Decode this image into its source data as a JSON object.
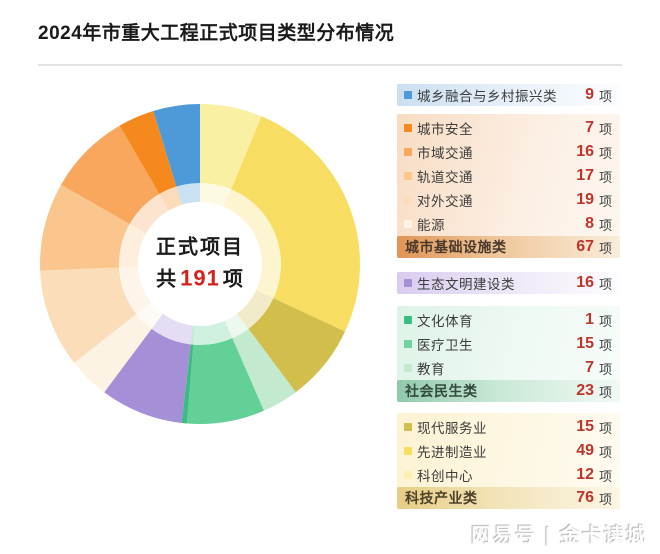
{
  "title": "2024年市重大工程正式项目类型分布情况",
  "center": {
    "line1": "正式项目",
    "prefix": "共",
    "total": "191",
    "suffix": "项"
  },
  "watermark": {
    "text": "网易号 | 金卡读城"
  },
  "colors": {
    "value_red": "#BE352C",
    "total_red": "#D2231E",
    "title_black": "#1A1A1A",
    "divider_gray": "#E3E3E3"
  },
  "chart_data": {
    "type": "pie",
    "title": "2024年市重大工程正式项目类型分布情况",
    "total": 191,
    "total_label": "正式项目 共191项",
    "unit": "项",
    "start_angle_deg": 0,
    "direction": "clockwise",
    "inner_ring_opacity": 0.3,
    "segments": [
      {
        "name": "科创中心",
        "value": 12,
        "color": "#FAF0A4"
      },
      {
        "name": "先进制造业",
        "value": 49,
        "color": "#F7DE62"
      },
      {
        "name": "现代服务业",
        "value": 15,
        "color": "#D2BE4B"
      },
      {
        "name": "教育",
        "value": 7,
        "color": "#C3E9CE"
      },
      {
        "name": "医疗卫生",
        "value": 15,
        "color": "#63D097"
      },
      {
        "name": "文化体育",
        "value": 1,
        "color": "#3BBC82"
      },
      {
        "name": "生态文明建设类",
        "value": 16,
        "color": "#A58FD6"
      },
      {
        "name": "能源",
        "value": 8,
        "color": "#FCF3E4"
      },
      {
        "name": "对外交通",
        "value": 19,
        "color": "#FBDDBA"
      },
      {
        "name": "轨道交通",
        "value": 17,
        "color": "#FAC68E"
      },
      {
        "name": "市域交通",
        "value": 16,
        "color": "#F8A75D"
      },
      {
        "name": "城市安全",
        "value": 7,
        "color": "#F6891E"
      },
      {
        "name": "城乡融合与乡村振兴类",
        "value": 9,
        "color": "#4E9AD9"
      }
    ]
  },
  "legend": {
    "unit": "项",
    "blocks": [
      {
        "id": "urban-rural",
        "theme": "blue",
        "single": true,
        "gap": "gap8",
        "items": [
          {
            "label": "城乡融合与乡村振兴类",
            "value": 9,
            "marker_color": "#4E9AD9"
          }
        ],
        "header": null
      },
      {
        "id": "infrastructure",
        "theme": "orange",
        "single": false,
        "gap": "gap14",
        "items": [
          {
            "label": "城市安全",
            "value": 7,
            "marker_color": "#F6891E"
          },
          {
            "label": "市域交通",
            "value": 16,
            "marker_color": "#F8A75D"
          },
          {
            "label": "轨道交通",
            "value": 17,
            "marker_color": "#FAC68E"
          },
          {
            "label": "对外交通",
            "value": 19,
            "marker_color": "#FBDDBA"
          },
          {
            "label": "能源",
            "value": 8,
            "marker_color": "#FCF3E4"
          }
        ],
        "header": {
          "label": "城市基础设施类",
          "value": 67
        }
      },
      {
        "id": "ecology",
        "theme": "purple",
        "single": true,
        "gap": "gap12",
        "items": [
          {
            "label": "生态文明建设类",
            "value": 16,
            "marker_color": "#A58FD6"
          }
        ],
        "header": null
      },
      {
        "id": "social",
        "theme": "green",
        "single": false,
        "gap": "gap11",
        "items": [
          {
            "label": "文化体育",
            "value": 1,
            "marker_color": "#3BBC82"
          },
          {
            "label": "医疗卫生",
            "value": 15,
            "marker_color": "#72D2A0"
          },
          {
            "label": "教育",
            "value": 7,
            "marker_color": "#C3E9CE"
          }
        ],
        "header": {
          "label": "社会民生类",
          "value": 23
        }
      },
      {
        "id": "tech",
        "theme": "yellow",
        "single": false,
        "gap": "",
        "items": [
          {
            "label": "现代服务业",
            "value": 15,
            "marker_color": "#D2BE4B"
          },
          {
            "label": "先进制造业",
            "value": 49,
            "marker_color": "#F7DE62"
          },
          {
            "label": "科创中心",
            "value": 12,
            "marker_color": "#FAF0B4"
          }
        ],
        "header": {
          "label": "科技产业类",
          "value": 76
        }
      }
    ]
  }
}
